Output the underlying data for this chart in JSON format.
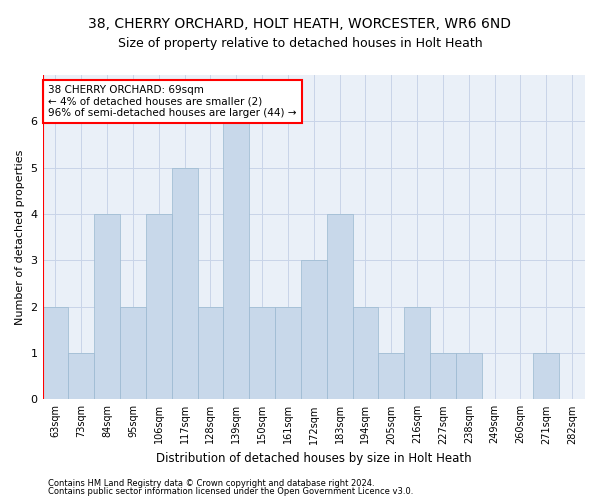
{
  "title": "38, CHERRY ORCHARD, HOLT HEATH, WORCESTER, WR6 6ND",
  "subtitle": "Size of property relative to detached houses in Holt Heath",
  "xlabel": "Distribution of detached houses by size in Holt Heath",
  "ylabel": "Number of detached properties",
  "bins": [
    "63sqm",
    "73sqm",
    "84sqm",
    "95sqm",
    "106sqm",
    "117sqm",
    "128sqm",
    "139sqm",
    "150sqm",
    "161sqm",
    "172sqm",
    "183sqm",
    "194sqm",
    "205sqm",
    "216sqm",
    "227sqm",
    "238sqm",
    "249sqm",
    "260sqm",
    "271sqm",
    "282sqm"
  ],
  "values": [
    2,
    1,
    4,
    2,
    4,
    5,
    2,
    6,
    2,
    2,
    3,
    4,
    2,
    1,
    2,
    1,
    1,
    0,
    0,
    1,
    0
  ],
  "bar_color": "#c8d8ea",
  "bar_edge_color": "#9ab8d0",
  "annotation_text": "38 CHERRY ORCHARD: 69sqm\n← 4% of detached houses are smaller (2)\n96% of semi-detached houses are larger (44) →",
  "annotation_box_color": "white",
  "annotation_box_edge": "red",
  "ylim": [
    0,
    7
  ],
  "yticks": [
    0,
    1,
    2,
    3,
    4,
    5,
    6
  ],
  "grid_color": "#c8d4e8",
  "ax_bg_color": "#eaf0f8",
  "background_color": "white",
  "footer_line1": "Contains HM Land Registry data © Crown copyright and database right 2024.",
  "footer_line2": "Contains public sector information licensed under the Open Government Licence v3.0.",
  "title_fontsize": 10,
  "subtitle_fontsize": 9,
  "ylabel_fontsize": 8,
  "xlabel_fontsize": 8.5,
  "tick_fontsize": 7,
  "footer_fontsize": 6,
  "annotation_fontsize": 7.5
}
